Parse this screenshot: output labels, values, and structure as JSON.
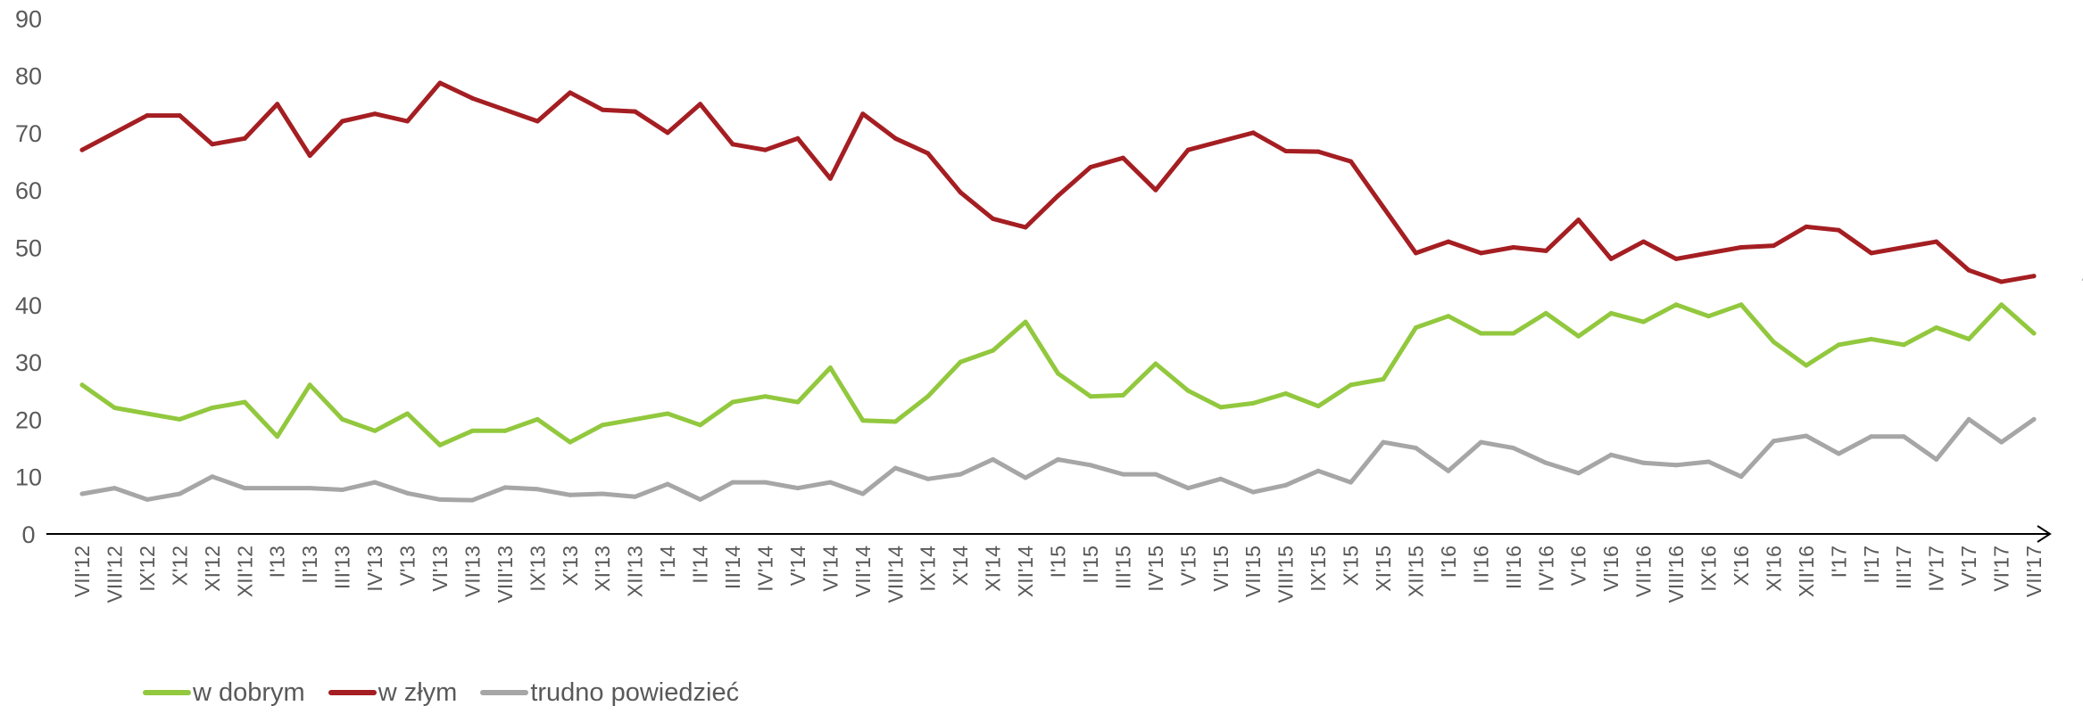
{
  "chart_data": {
    "type": "line",
    "title": "",
    "xlabel": "",
    "ylabel": "",
    "ylim": [
      0,
      90
    ],
    "yticks": [
      0,
      10,
      20,
      30,
      40,
      50,
      60,
      70,
      80,
      90
    ],
    "grid": false,
    "legend_position": "bottom-left",
    "categories": [
      "VII'12",
      "VIII'12",
      "IX'12",
      "X'12",
      "XI'12",
      "XII'12",
      "I'13",
      "II'13",
      "III'13",
      "IV'13",
      "V'13",
      "VI'13",
      "VII'13",
      "VIII'13",
      "IX'13",
      "X'13",
      "XI'13",
      "XII'13",
      "I'14",
      "II'14",
      "III'14",
      "IV'14",
      "V'14",
      "VI'14",
      "VII'14",
      "VIII'14",
      "IX'14",
      "X'14",
      "XI'14",
      "XII'14",
      "I'15",
      "II'15",
      "III'15",
      "IV'15",
      "V'15",
      "VI'15",
      "VII'15",
      "VIII'15",
      "IX'15",
      "X'15",
      "XI'15",
      "XII'15",
      "I'16",
      "II'16",
      "III'16",
      "IV'16",
      "V'16",
      "VI'16",
      "VII'16",
      "VIII'16",
      "IX'16",
      "X'16",
      "XI'16",
      "XII'16",
      "I'17",
      "II'17",
      "III'17",
      "IV'17",
      "V'17",
      "VI'17",
      "VII'17"
    ],
    "series": [
      {
        "name": "w dobrym",
        "color": "#92C83E",
        "end_label": "35",
        "values": [
          26,
          22,
          21,
          20,
          22,
          23,
          17,
          26,
          20,
          18,
          21,
          15.5,
          18,
          18,
          20,
          16,
          19,
          20,
          21,
          19,
          23,
          24,
          23,
          29,
          19.8,
          19.6,
          24,
          30,
          32,
          37,
          28,
          24,
          24.2,
          29.7,
          25,
          22.1,
          22.8,
          24.5,
          22.3,
          26,
          27,
          36,
          38,
          35,
          35,
          38.5,
          34.5,
          38.5,
          37,
          40,
          38,
          40,
          33.5,
          29.4,
          33,
          34,
          33,
          36,
          34,
          40,
          35
        ]
      },
      {
        "name": "w złym",
        "color": "#A41E22",
        "end_label": "45",
        "values": [
          67,
          70,
          73,
          73,
          68,
          69,
          75,
          66,
          72,
          73.3,
          72,
          78.7,
          76,
          74,
          72,
          77,
          74,
          73.7,
          70,
          75,
          68,
          67,
          69,
          62,
          73.3,
          69,
          66.4,
          59.6,
          55,
          53.5,
          59,
          64,
          65.6,
          60,
          67,
          68.5,
          70,
          66.8,
          66.7,
          65,
          57,
          49,
          51,
          49,
          50,
          49.4,
          54.8,
          48,
          51,
          48,
          49,
          50,
          50.3,
          53.6,
          53,
          49,
          50,
          51,
          46,
          44,
          45
        ]
      },
      {
        "name": "trudno powiedzieć",
        "color": "#A6A6A6",
        "end_label": "20",
        "values": [
          7,
          8,
          6,
          7,
          10,
          8,
          8,
          8,
          7.7,
          9,
          7.1,
          6,
          5.9,
          8.1,
          7.8,
          6.8,
          7,
          6.5,
          8.7,
          6,
          9,
          9,
          8,
          9,
          7,
          11.5,
          9.6,
          10.4,
          13,
          9.8,
          13,
          12,
          10.4,
          10.4,
          8,
          9.6,
          7.3,
          8.5,
          11,
          9,
          16,
          15,
          11,
          16,
          15,
          12.4,
          10.6,
          13.8,
          12.4,
          12,
          12.6,
          10,
          16.2,
          17.1,
          14,
          17,
          17,
          13,
          20,
          16,
          20
        ]
      }
    ]
  }
}
